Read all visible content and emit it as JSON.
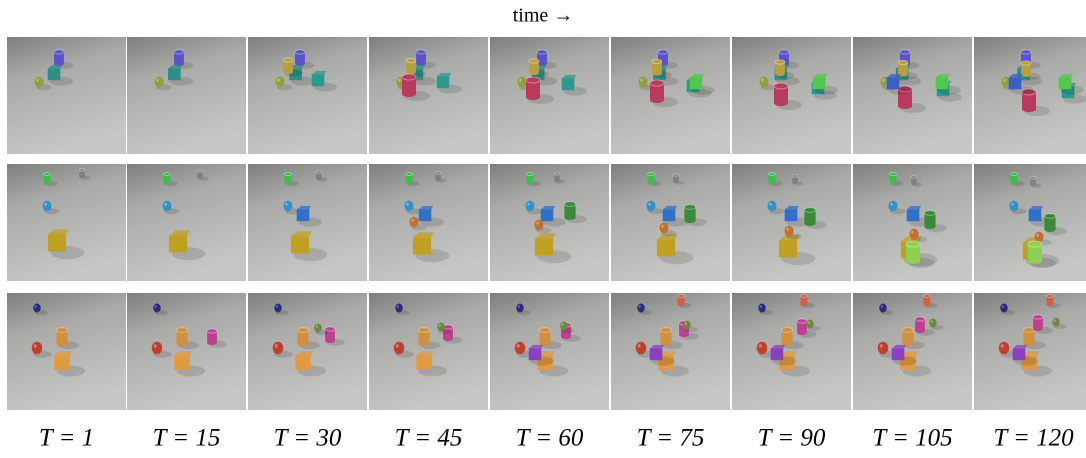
{
  "header": {
    "title": "time →"
  },
  "labels": [
    "T = 1",
    "T = 15",
    "T = 30",
    "T = 45",
    "T = 60",
    "T = 75",
    "T = 90",
    "T = 105",
    "T = 120"
  ]
}
